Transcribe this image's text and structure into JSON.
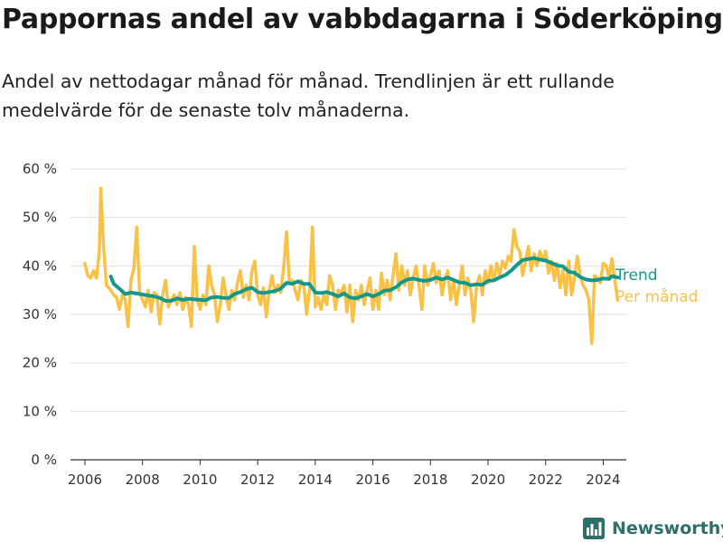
{
  "header": {
    "title": "Pappornas andel av vabbdagarna i Söderköping",
    "subtitle": "Andel av nettodagar månad för månad. Trendlinjen är ett rullande medelvärde för de senaste tolv månaderna."
  },
  "brand": {
    "name": "Newsworthy",
    "icon": "bar-chart-icon",
    "color": "#2e6f69"
  },
  "chart_data": {
    "type": "line",
    "title": "",
    "xlabel": "",
    "ylabel": "",
    "xlim": [
      2005.5,
      2024.8
    ],
    "ylim": [
      0,
      60
    ],
    "x_ticks": [
      2006,
      2008,
      2010,
      2012,
      2014,
      2016,
      2018,
      2020,
      2022,
      2024
    ],
    "x_tick_labels": [
      "2006",
      "2008",
      "2010",
      "2012",
      "2014",
      "2016",
      "2018",
      "2020",
      "2022",
      "2024"
    ],
    "y_ticks": [
      0,
      10,
      20,
      30,
      40,
      50,
      60
    ],
    "y_tick_labels": [
      "0 %",
      "10 %",
      "20 %",
      "30 %",
      "40 %",
      "50 %",
      "60 %"
    ],
    "grid": true,
    "legend": "labels at line ends (right)",
    "series": [
      {
        "name": "Per månad",
        "color": "#f9c247",
        "points": [
          [
            2006.0,
            40.5
          ],
          [
            2006.1,
            38
          ],
          [
            2006.2,
            37.5
          ],
          [
            2006.3,
            39
          ],
          [
            2006.4,
            37.5
          ],
          [
            2006.5,
            43
          ],
          [
            2006.55,
            56
          ],
          [
            2006.65,
            44
          ],
          [
            2006.75,
            36
          ],
          [
            2006.9,
            35
          ],
          [
            2007.0,
            34
          ],
          [
            2007.1,
            33.5
          ],
          [
            2007.2,
            31
          ],
          [
            2007.3,
            34
          ],
          [
            2007.4,
            33
          ],
          [
            2007.5,
            27.5
          ],
          [
            2007.6,
            37
          ],
          [
            2007.7,
            39.5
          ],
          [
            2007.8,
            48
          ],
          [
            2007.9,
            34.5
          ],
          [
            2008.0,
            33
          ],
          [
            2008.1,
            31.5
          ],
          [
            2008.2,
            35
          ],
          [
            2008.3,
            30.5
          ],
          [
            2008.4,
            34.5
          ],
          [
            2008.5,
            34
          ],
          [
            2008.6,
            28
          ],
          [
            2008.7,
            34
          ],
          [
            2008.8,
            37
          ],
          [
            2008.9,
            31.5
          ],
          [
            2009.0,
            33
          ],
          [
            2009.1,
            34
          ],
          [
            2009.2,
            32
          ],
          [
            2009.3,
            34.5
          ],
          [
            2009.4,
            31
          ],
          [
            2009.5,
            33.5
          ],
          [
            2009.6,
            32
          ],
          [
            2009.7,
            27.5
          ],
          [
            2009.8,
            44
          ],
          [
            2009.9,
            33
          ],
          [
            2010.0,
            31
          ],
          [
            2010.1,
            34
          ],
          [
            2010.2,
            32
          ],
          [
            2010.3,
            40
          ],
          [
            2010.4,
            36
          ],
          [
            2010.5,
            34
          ],
          [
            2010.6,
            28.5
          ],
          [
            2010.7,
            32
          ],
          [
            2010.8,
            37.5
          ],
          [
            2010.9,
            34
          ],
          [
            2011.0,
            31
          ],
          [
            2011.1,
            35
          ],
          [
            2011.2,
            33
          ],
          [
            2011.3,
            36.5
          ],
          [
            2011.4,
            39
          ],
          [
            2011.5,
            33.5
          ],
          [
            2011.6,
            36
          ],
          [
            2011.7,
            33
          ],
          [
            2011.8,
            39
          ],
          [
            2011.9,
            41
          ],
          [
            2012.0,
            34
          ],
          [
            2012.1,
            32
          ],
          [
            2012.2,
            35.5
          ],
          [
            2012.3,
            29.5
          ],
          [
            2012.4,
            35
          ],
          [
            2012.5,
            38
          ],
          [
            2012.6,
            34.5
          ],
          [
            2012.7,
            36
          ],
          [
            2012.8,
            34.5
          ],
          [
            2012.9,
            39.5
          ],
          [
            2013.0,
            47
          ],
          [
            2013.1,
            36.5
          ],
          [
            2013.2,
            37
          ],
          [
            2013.3,
            35
          ],
          [
            2013.4,
            33
          ],
          [
            2013.5,
            37
          ],
          [
            2013.6,
            36
          ],
          [
            2013.7,
            30
          ],
          [
            2013.8,
            35
          ],
          [
            2013.9,
            48
          ],
          [
            2014.0,
            31.5
          ],
          [
            2014.1,
            33.5
          ],
          [
            2014.2,
            31
          ],
          [
            2014.3,
            34
          ],
          [
            2014.4,
            32
          ],
          [
            2014.5,
            38
          ],
          [
            2014.6,
            36
          ],
          [
            2014.7,
            31
          ],
          [
            2014.8,
            35
          ],
          [
            2014.9,
            34.5
          ],
          [
            2015.0,
            36
          ],
          [
            2015.1,
            30.5
          ],
          [
            2015.2,
            36
          ],
          [
            2015.3,
            28.5
          ],
          [
            2015.4,
            35
          ],
          [
            2015.5,
            33
          ],
          [
            2015.6,
            36
          ],
          [
            2015.7,
            32
          ],
          [
            2015.8,
            35
          ],
          [
            2015.9,
            37.5
          ],
          [
            2016.0,
            31
          ],
          [
            2016.1,
            35
          ],
          [
            2016.2,
            31
          ],
          [
            2016.3,
            38.5
          ],
          [
            2016.4,
            34
          ],
          [
            2016.5,
            37
          ],
          [
            2016.6,
            33
          ],
          [
            2016.7,
            38
          ],
          [
            2016.8,
            42.5
          ],
          [
            2016.9,
            35
          ],
          [
            2017.0,
            40
          ],
          [
            2017.1,
            36
          ],
          [
            2017.2,
            39
          ],
          [
            2017.3,
            34
          ],
          [
            2017.4,
            37.5
          ],
          [
            2017.5,
            40
          ],
          [
            2017.6,
            36
          ],
          [
            2017.7,
            31
          ],
          [
            2017.8,
            40
          ],
          [
            2017.9,
            36
          ],
          [
            2018.0,
            38
          ],
          [
            2018.1,
            40.5
          ],
          [
            2018.2,
            36.5
          ],
          [
            2018.3,
            39
          ],
          [
            2018.4,
            34
          ],
          [
            2018.5,
            37
          ],
          [
            2018.6,
            39
          ],
          [
            2018.7,
            33
          ],
          [
            2018.8,
            37
          ],
          [
            2018.9,
            32
          ],
          [
            2019.0,
            36
          ],
          [
            2019.1,
            40
          ],
          [
            2019.2,
            34
          ],
          [
            2019.3,
            37.5
          ],
          [
            2019.4,
            35
          ],
          [
            2019.5,
            28.5
          ],
          [
            2019.6,
            36
          ],
          [
            2019.7,
            38
          ],
          [
            2019.8,
            34
          ],
          [
            2019.9,
            39
          ],
          [
            2020.0,
            36.5
          ],
          [
            2020.1,
            40
          ],
          [
            2020.2,
            37
          ],
          [
            2020.3,
            40.5
          ],
          [
            2020.4,
            38
          ],
          [
            2020.5,
            41
          ],
          [
            2020.6,
            39.5
          ],
          [
            2020.7,
            42
          ],
          [
            2020.8,
            41
          ],
          [
            2020.9,
            47.5
          ],
          [
            2021.0,
            44
          ],
          [
            2021.1,
            43
          ],
          [
            2021.2,
            38
          ],
          [
            2021.3,
            41
          ],
          [
            2021.4,
            44
          ],
          [
            2021.5,
            39
          ],
          [
            2021.6,
            42.5
          ],
          [
            2021.7,
            40
          ],
          [
            2021.8,
            43
          ],
          [
            2021.9,
            41
          ],
          [
            2022.0,
            43
          ],
          [
            2022.1,
            38.5
          ],
          [
            2022.2,
            41
          ],
          [
            2022.3,
            37
          ],
          [
            2022.4,
            40.5
          ],
          [
            2022.5,
            35.5
          ],
          [
            2022.6,
            39
          ],
          [
            2022.7,
            34
          ],
          [
            2022.8,
            41
          ],
          [
            2022.9,
            34
          ],
          [
            2023.0,
            37.5
          ],
          [
            2023.1,
            42
          ],
          [
            2023.2,
            38
          ],
          [
            2023.3,
            36
          ],
          [
            2023.4,
            35
          ],
          [
            2023.5,
            33
          ],
          [
            2023.6,
            24
          ],
          [
            2023.7,
            38
          ],
          [
            2023.8,
            37.5
          ],
          [
            2023.9,
            36.5
          ],
          [
            2024.0,
            40.5
          ],
          [
            2024.1,
            40
          ],
          [
            2024.2,
            37.5
          ],
          [
            2024.3,
            41.5
          ],
          [
            2024.4,
            37
          ],
          [
            2024.5,
            33
          ]
        ]
      },
      {
        "name": "Trend",
        "color": "#14988b",
        "points": [
          [
            2006.9,
            37.8
          ],
          [
            2007.0,
            36.3
          ],
          [
            2007.2,
            35.3
          ],
          [
            2007.4,
            34.2
          ],
          [
            2007.6,
            34.5
          ],
          [
            2007.8,
            34.3
          ],
          [
            2008.0,
            34.1
          ],
          [
            2008.2,
            33.9
          ],
          [
            2008.4,
            33.7
          ],
          [
            2008.6,
            33.4
          ],
          [
            2008.8,
            32.8
          ],
          [
            2009.0,
            32.8
          ],
          [
            2009.2,
            33.3
          ],
          [
            2009.4,
            33.0
          ],
          [
            2009.6,
            33.2
          ],
          [
            2009.8,
            33.1
          ],
          [
            2010.0,
            33.0
          ],
          [
            2010.2,
            32.9
          ],
          [
            2010.4,
            33.5
          ],
          [
            2010.6,
            33.6
          ],
          [
            2010.8,
            33.4
          ],
          [
            2011.0,
            33.4
          ],
          [
            2011.2,
            34.2
          ],
          [
            2011.4,
            34.6
          ],
          [
            2011.6,
            35.2
          ],
          [
            2011.8,
            35.5
          ],
          [
            2012.0,
            34.6
          ],
          [
            2012.2,
            34.4
          ],
          [
            2012.4,
            34.6
          ],
          [
            2012.6,
            34.8
          ],
          [
            2012.8,
            35.3
          ],
          [
            2013.0,
            36.5
          ],
          [
            2013.2,
            36.3
          ],
          [
            2013.4,
            36.8
          ],
          [
            2013.6,
            36.3
          ],
          [
            2013.8,
            36.3
          ],
          [
            2014.0,
            34.5
          ],
          [
            2014.2,
            34.4
          ],
          [
            2014.4,
            34.6
          ],
          [
            2014.6,
            34.2
          ],
          [
            2014.8,
            33.7
          ],
          [
            2015.0,
            34.3
          ],
          [
            2015.2,
            33.5
          ],
          [
            2015.4,
            33.3
          ],
          [
            2015.6,
            33.7
          ],
          [
            2015.8,
            34.2
          ],
          [
            2016.0,
            33.7
          ],
          [
            2016.2,
            34.2
          ],
          [
            2016.4,
            34.9
          ],
          [
            2016.6,
            35.0
          ],
          [
            2016.8,
            35.6
          ],
          [
            2017.0,
            36.6
          ],
          [
            2017.2,
            37.2
          ],
          [
            2017.4,
            37.4
          ],
          [
            2017.6,
            37.1
          ],
          [
            2017.8,
            36.9
          ],
          [
            2018.0,
            37.1
          ],
          [
            2018.2,
            37.6
          ],
          [
            2018.4,
            37.2
          ],
          [
            2018.6,
            37.6
          ],
          [
            2018.8,
            37.1
          ],
          [
            2019.0,
            36.6
          ],
          [
            2019.2,
            36.5
          ],
          [
            2019.4,
            36.0
          ],
          [
            2019.6,
            36.2
          ],
          [
            2019.8,
            36.1
          ],
          [
            2020.0,
            36.9
          ],
          [
            2020.2,
            37.0
          ],
          [
            2020.4,
            37.6
          ],
          [
            2020.6,
            38.1
          ],
          [
            2020.8,
            39.0
          ],
          [
            2021.0,
            40.2
          ],
          [
            2021.2,
            41.2
          ],
          [
            2021.4,
            41.4
          ],
          [
            2021.6,
            41.6
          ],
          [
            2021.8,
            41.3
          ],
          [
            2022.0,
            41.1
          ],
          [
            2022.2,
            40.6
          ],
          [
            2022.4,
            40.1
          ],
          [
            2022.6,
            39.9
          ],
          [
            2022.8,
            38.8
          ],
          [
            2023.0,
            38.6
          ],
          [
            2023.2,
            37.7
          ],
          [
            2023.4,
            37.2
          ],
          [
            2023.6,
            37.0
          ],
          [
            2023.8,
            37.1
          ],
          [
            2024.0,
            37.4
          ],
          [
            2024.2,
            37.3
          ],
          [
            2024.3,
            37.9
          ],
          [
            2024.5,
            37.6
          ]
        ]
      }
    ]
  }
}
